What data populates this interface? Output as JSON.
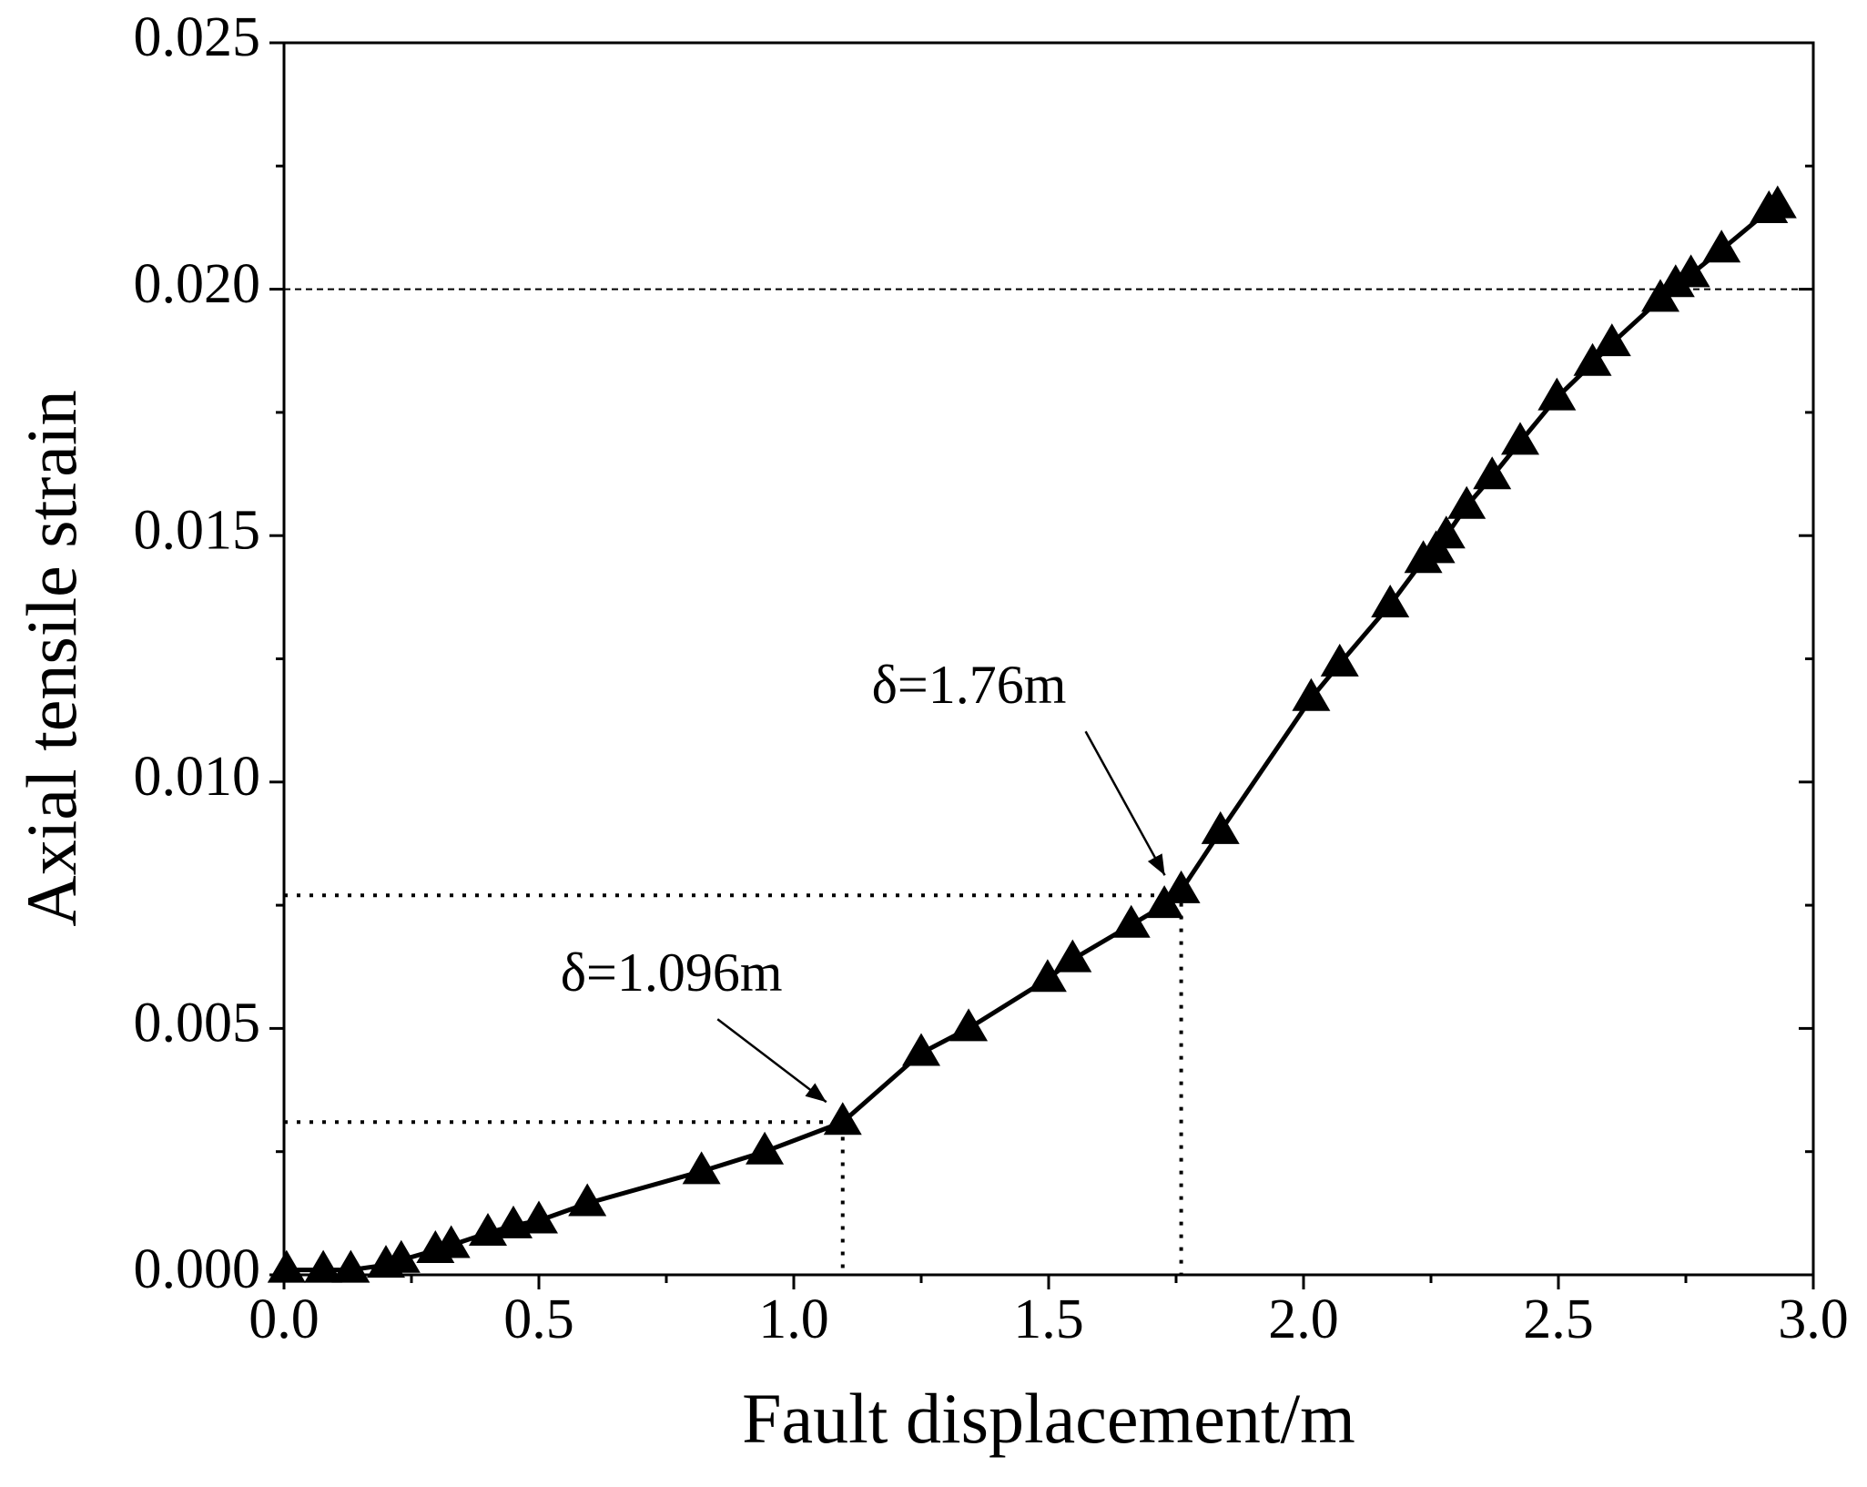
{
  "chart_data": {
    "type": "line",
    "x_label": "Fault displacement/m",
    "y_label": "Axial tensile strain",
    "x": [
      0.005,
      0.077,
      0.131,
      0.2,
      0.23,
      0.297,
      0.328,
      0.4,
      0.45,
      0.5,
      0.595,
      0.819,
      0.943,
      1.096,
      1.25,
      1.343,
      1.498,
      1.547,
      1.662,
      1.727,
      1.76,
      1.837,
      2.015,
      2.071,
      2.17,
      2.235,
      2.26,
      2.28,
      2.32,
      2.37,
      2.425,
      2.497,
      2.567,
      2.605,
      2.7,
      2.73,
      2.76,
      2.82,
      2.913,
      2.93
    ],
    "series": [
      {
        "color": "#000000",
        "values": [
          0.0001,
          0.0001,
          0.0001,
          0.0002,
          0.0003,
          0.0005,
          0.0006,
          0.00085,
          0.001,
          0.0011,
          0.00145,
          0.0021,
          0.0025,
          0.0031,
          0.0045,
          0.005,
          0.006,
          0.0064,
          0.0071,
          0.0075,
          0.0078,
          0.009,
          0.0117,
          0.0124,
          0.0136,
          0.0145,
          0.0147,
          0.015,
          0.0156,
          0.0162,
          0.0169,
          0.0178,
          0.0185,
          0.0189,
          0.0198,
          0.0201,
          0.0203,
          0.0208,
          0.0216,
          0.0217
        ]
      }
    ],
    "xlim": [
      0,
      3
    ],
    "ylim": [
      0,
      0.025
    ],
    "xticks": [
      {
        "value": 0,
        "label": "0.0"
      },
      0.5,
      {
        "value": 1,
        "label": "1.0"
      },
      1.5,
      {
        "value": 2,
        "label": "2.0"
      },
      2.5,
      {
        "value": 3,
        "label": "3.0"
      }
    ],
    "yticks": [
      {
        "value": 0,
        "label": "0.000"
      },
      0.005,
      {
        "value": 0.01,
        "label": "0.010"
      },
      0.015,
      {
        "value": 0.02,
        "label": "0.020"
      },
      0.025
    ],
    "reference_line_y": 0.02,
    "annotations": [
      {
        "text": "δ=1.096m",
        "x": 1.096,
        "y": 0.0031
      },
      {
        "text": "δ=1.76m",
        "x": 1.76,
        "y": 0.0077
      }
    ]
  }
}
